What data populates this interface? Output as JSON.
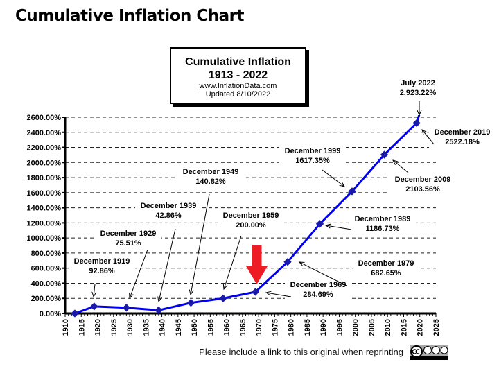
{
  "page_title": "Cumulative Inflation Chart",
  "footer_text": "Please include a link to this original when reprinting",
  "license_badge": "cc-by-nc-nd-icon",
  "chart_data": {
    "type": "line",
    "title": "Cumulative Inflation",
    "subtitle": "1913 - 2022",
    "source": "www.InflationData.com",
    "updated": "Updated  8/10/2022",
    "xlim": [
      1910,
      2025
    ],
    "ylim": [
      0,
      2600
    ],
    "xticks": [
      1910,
      1915,
      1920,
      1925,
      1930,
      1935,
      1940,
      1945,
      1950,
      1955,
      1960,
      1965,
      1970,
      1975,
      1980,
      1985,
      1990,
      1995,
      2000,
      2005,
      2010,
      2015,
      2020,
      2025
    ],
    "yticks": [
      "0.00%",
      "200.00%",
      "400.00%",
      "600.00%",
      "800.00%",
      "1000.00%",
      "1200.00%",
      "1400.00%",
      "1600.00%",
      "1800.00%",
      "2000.00%",
      "2200.00%",
      "2400.00%",
      "2600.00%"
    ],
    "grid": "horizontal dashed",
    "line_color": "#0000ee",
    "highlight_color": "#ee1c25",
    "highlight_year": 1969,
    "x": [
      1913,
      1919,
      1929,
      1939,
      1949,
      1959,
      1969,
      1979,
      1989,
      1999,
      2009,
      2019,
      2022
    ],
    "y": [
      0,
      92.86,
      75.51,
      42.86,
      140.82,
      200.0,
      284.69,
      682.65,
      1186.73,
      1617.35,
      2103.56,
      2522.18,
      2923.22
    ],
    "annotations": [
      {
        "l1": "December 1919",
        "l2": "92.86%"
      },
      {
        "l1": "December 1929",
        "l2": "75.51%"
      },
      {
        "l1": "December 1939",
        "l2": "42.86%"
      },
      {
        "l1": "December 1949",
        "l2": "140.82%"
      },
      {
        "l1": "December 1959",
        "l2": "200.00%"
      },
      {
        "l1": "December 1969",
        "l2": "284.69%"
      },
      {
        "l1": "December 1979",
        "l2": "682.65%"
      },
      {
        "l1": "December 1989",
        "l2": "1186.73%"
      },
      {
        "l1": "December 1999",
        "l2": "1617.35%"
      },
      {
        "l1": "December 2009",
        "l2": "2103.56%"
      },
      {
        "l1": "December 2019",
        "l2": "2522.18%"
      },
      {
        "l1": "July  2022",
        "l2": "2,923.22%"
      }
    ]
  }
}
